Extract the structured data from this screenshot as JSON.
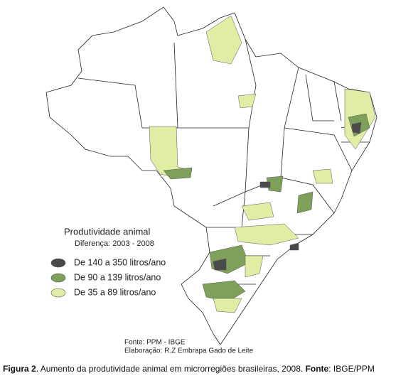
{
  "legend": {
    "title": "Produtividade animal",
    "subtitle": "Diferença: 2003 - 2008",
    "items": [
      {
        "label": "De 140 a 350 litros/ano",
        "color": "#4a4a4a"
      },
      {
        "label": "De 90 a 139 litros/ano",
        "color": "#7fa05a"
      },
      {
        "label": "De 35 a 89 litros/ano",
        "color": "#dfeea4"
      }
    ]
  },
  "source": {
    "line1": "Fonte: PPM - IBGE",
    "line2": "Elaboração: R.Z Embrapa Gado de Leite"
  },
  "caption": {
    "label": "Figura 2",
    "text": ". Aumento da produtividade animal em microrregiões brasileiras, 2008. ",
    "source_label": "Fonte",
    "source": ": IBGE/PPM"
  }
}
